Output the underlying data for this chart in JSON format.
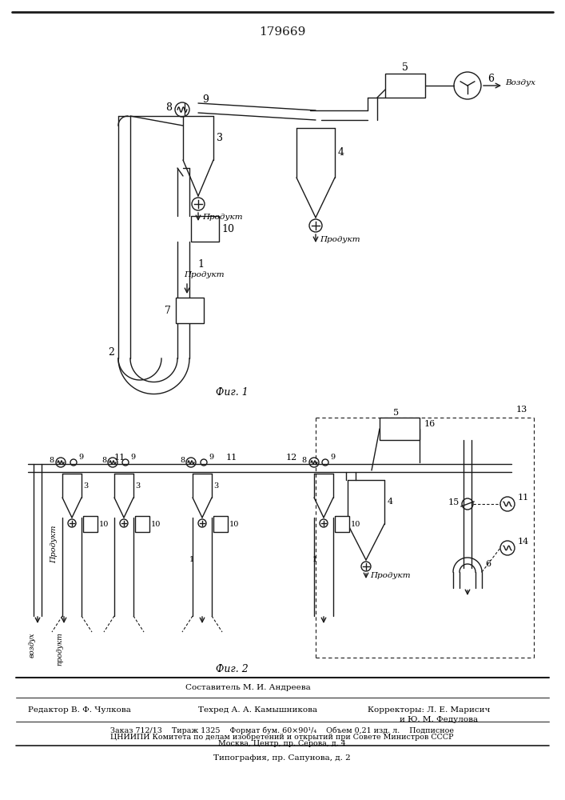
{
  "patent_number": "179669",
  "fig1_caption": "Фиг. 1",
  "fig2_caption": "Фиг. 2",
  "vozdukh": "Воздух",
  "bg_color": "#ffffff",
  "line_color": "#1a1a1a"
}
